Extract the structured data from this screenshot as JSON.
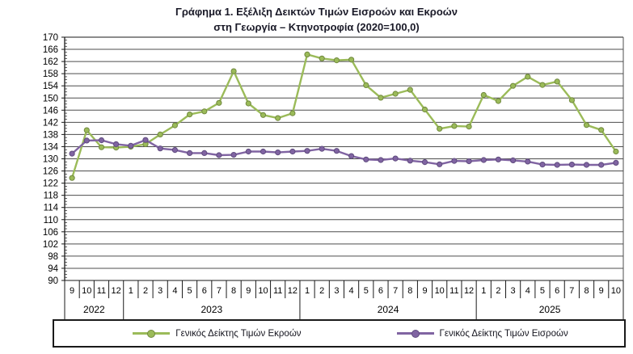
{
  "title": {
    "line1": "Γράφημα 1. Εξέλιξη Δεικτών Τιμών Εισροών και Εκροών",
    "line2": "στη Γεωργία – Κτηνοτροφία (2020=100,0)"
  },
  "chart_data": {
    "type": "line",
    "title": "Γράφημα 1. Εξέλιξη Δεικτών Τιμών Εισροών και Εκροών στη Γεωργία – Κτηνοτροφία (2020=100,0)",
    "base_period": "2020=100,0",
    "ylim": [
      90,
      170
    ],
    "ytick_step": 4,
    "yticks": [
      170,
      166,
      162,
      158,
      154,
      150,
      146,
      142,
      138,
      134,
      130,
      126,
      122,
      118,
      114,
      110,
      106,
      102,
      98,
      94,
      90
    ],
    "grid": true,
    "legend_position": "bottom",
    "x_months": [
      "9",
      "10",
      "11",
      "12",
      "1",
      "2",
      "3",
      "4",
      "5",
      "6",
      "7",
      "8",
      "9",
      "10",
      "11",
      "12",
      "1",
      "2",
      "3",
      "4",
      "5",
      "6",
      "7",
      "8",
      "9",
      "10",
      "11",
      "12",
      "1",
      "2",
      "3",
      "4",
      "5",
      "6",
      "7",
      "8",
      "9",
      "10"
    ],
    "x_years": [
      {
        "label": "2022",
        "months": 4
      },
      {
        "label": "2023",
        "months": 12
      },
      {
        "label": "2024",
        "months": 12
      },
      {
        "label": "2025",
        "months": 10
      }
    ],
    "series": [
      {
        "name": "Γενικός Δείκτης Τιμών Εκροών",
        "color": "#9BBB59",
        "edge": "#71893F",
        "values": [
          123.7,
          139.4,
          133.8,
          133.7,
          134.0,
          134.8,
          138.0,
          141.0,
          144.6,
          145.6,
          148.4,
          158.8,
          148.2,
          144.4,
          143.4,
          145.0,
          164.3,
          163.0,
          162.4,
          162.6,
          154.2,
          150.1,
          151.4,
          152.7,
          146.2,
          139.9,
          140.8,
          140.6,
          151.0,
          149.0,
          154.0,
          157.0,
          154.3,
          155.4,
          149.3,
          141.1,
          139.5,
          132.4
        ]
      },
      {
        "name": "Γενικός Δείκτης Τιμών Εισροών",
        "color": "#8064A2",
        "edge": "#5F4B7E",
        "values": [
          131.7,
          136.0,
          136.1,
          134.8,
          134.3,
          136.2,
          133.4,
          132.9,
          131.9,
          131.9,
          131.2,
          131.3,
          132.4,
          132.4,
          132.1,
          132.4,
          132.6,
          133.3,
          132.6,
          130.9,
          129.8,
          129.6,
          130.1,
          129.4,
          128.9,
          128.2,
          129.3,
          129.2,
          129.6,
          129.8,
          129.5,
          129.1,
          128.1,
          128.0,
          128.1,
          128.0,
          128.0,
          128.7
        ]
      }
    ]
  }
}
